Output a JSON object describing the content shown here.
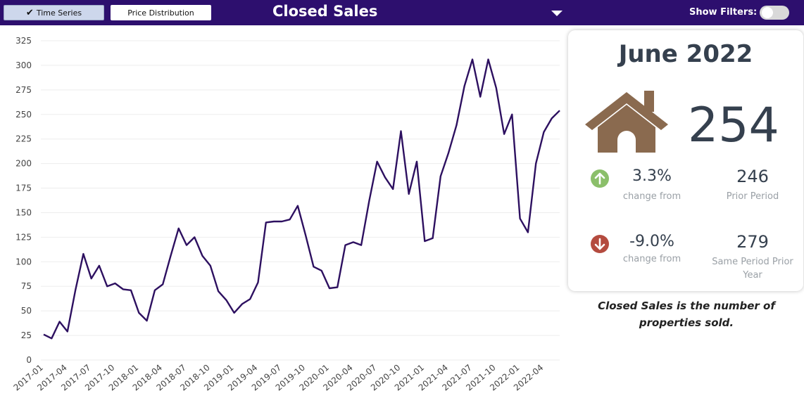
{
  "header": {
    "tab_time_series": "Time Series",
    "tab_price_distribution": "Price Distribution",
    "title": "Closed Sales",
    "show_filters_label": "Show Filters:"
  },
  "summary": {
    "period": "June 2022",
    "value": "254",
    "change1": {
      "pct": "3.3%",
      "label": "change from",
      "value": "246",
      "value_label": "Prior Period",
      "direction": "up",
      "color": "#8bbf6a"
    },
    "change2": {
      "pct": "-9.0%",
      "label": "change from",
      "value": "279",
      "value_label": "Same Period Prior Year",
      "direction": "down",
      "color": "#b44b3f"
    }
  },
  "note": "Closed Sales is the number of properties sold.",
  "chart_data": {
    "type": "line",
    "line_color": "#2d1060",
    "ylim": [
      0,
      325
    ],
    "yticks": [
      0,
      25,
      50,
      75,
      100,
      125,
      150,
      175,
      200,
      225,
      250,
      275,
      300,
      325
    ],
    "x_ticklabels": [
      "2017-01",
      "2017-04",
      "2017-07",
      "2017-10",
      "2018-01",
      "2018-04",
      "2018-07",
      "2018-10",
      "2019-01",
      "2019-04",
      "2019-07",
      "2019-10",
      "2020-01",
      "2020-04",
      "2020-07",
      "2020-10",
      "2021-01",
      "2021-04",
      "2021-07",
      "2021-10",
      "2022-01",
      "2022-04"
    ],
    "x_start": "2017-01",
    "values": [
      26,
      22,
      39,
      29,
      71,
      108,
      83,
      96,
      75,
      78,
      72,
      71,
      48,
      40,
      71,
      77,
      106,
      134,
      117,
      125,
      106,
      96,
      70,
      61,
      48,
      57,
      62,
      79,
      140,
      141,
      141,
      143,
      157,
      127,
      95,
      91,
      73,
      74,
      117,
      120,
      117,
      162,
      202,
      186,
      174,
      233,
      169,
      202,
      121,
      124,
      187,
      211,
      239,
      279,
      306,
      268,
      306,
      277,
      230,
      250,
      144,
      130,
      200,
      232,
      246,
      254
    ]
  }
}
